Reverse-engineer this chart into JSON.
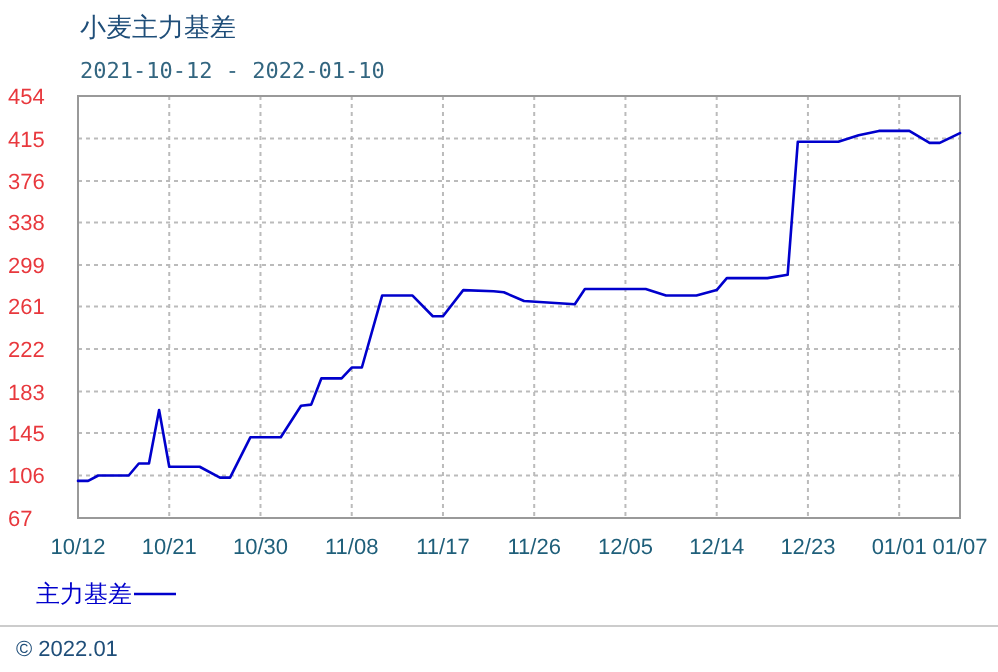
{
  "chart_data": {
    "type": "line",
    "title": "小麦主力基差",
    "subtitle": "2021-10-12 - 2022-01-10",
    "annotations": [
      "© 2022.01"
    ],
    "xlim": [
      "2021-10-12",
      "2022-01-07"
    ],
    "xticks": [
      {
        "value": "2021-10-12",
        "label": "10/12"
      },
      {
        "value": "2021-10-21",
        "label": "10/21"
      },
      {
        "value": "2021-10-30",
        "label": "10/30"
      },
      {
        "value": "2021-11-08",
        "label": "11/08"
      },
      {
        "value": "2021-11-17",
        "label": "11/17"
      },
      {
        "value": "2021-11-26",
        "label": "11/26"
      },
      {
        "value": "2021-12-05",
        "label": "12/05"
      },
      {
        "value": "2021-12-14",
        "label": "12/14"
      },
      {
        "value": "2021-12-23",
        "label": "12/23"
      },
      {
        "value": "2022-01-01",
        "label": "01/01"
      },
      {
        "value": "2022-01-07",
        "label": "01/07"
      }
    ],
    "ylim": [
      67,
      454
    ],
    "yticks": [
      67,
      106,
      145,
      183,
      222,
      261,
      299,
      338,
      376,
      415,
      454
    ],
    "grid": true,
    "legend": "bottom left",
    "series": [
      {
        "name": "主力基差",
        "color": "#0000cc",
        "x": [
          "2021-10-12",
          "2021-10-13",
          "2021-10-14",
          "2021-10-17",
          "2021-10-18",
          "2021-10-19",
          "2021-10-20",
          "2021-10-21",
          "2021-10-24",
          "2021-10-26",
          "2021-10-27",
          "2021-10-29",
          "2021-11-01",
          "2021-11-03",
          "2021-11-04",
          "2021-11-05",
          "2021-11-07",
          "2021-11-08",
          "2021-11-09",
          "2021-11-11",
          "2021-11-14",
          "2021-11-16",
          "2021-11-17",
          "2021-11-19",
          "2021-11-22",
          "2021-11-23",
          "2021-11-25",
          "2021-11-30",
          "2021-12-01",
          "2021-12-07",
          "2021-12-09",
          "2021-12-12",
          "2021-12-14",
          "2021-12-15",
          "2021-12-19",
          "2021-12-21",
          "2021-12-22",
          "2021-12-26",
          "2021-12-28",
          "2021-12-30",
          "2022-01-02",
          "2022-01-04",
          "2022-01-05",
          "2022-01-07"
        ],
        "values": [
          101,
          101,
          106,
          106,
          117,
          117,
          166,
          114,
          114,
          104,
          104,
          141,
          141,
          170,
          171,
          195,
          195,
          205,
          205,
          271,
          271,
          252,
          252,
          276,
          275,
          274,
          266,
          263,
          277,
          277,
          271,
          271,
          276,
          287,
          287,
          290,
          412,
          412,
          418,
          422,
          422,
          411,
          411,
          420
        ]
      }
    ]
  }
}
